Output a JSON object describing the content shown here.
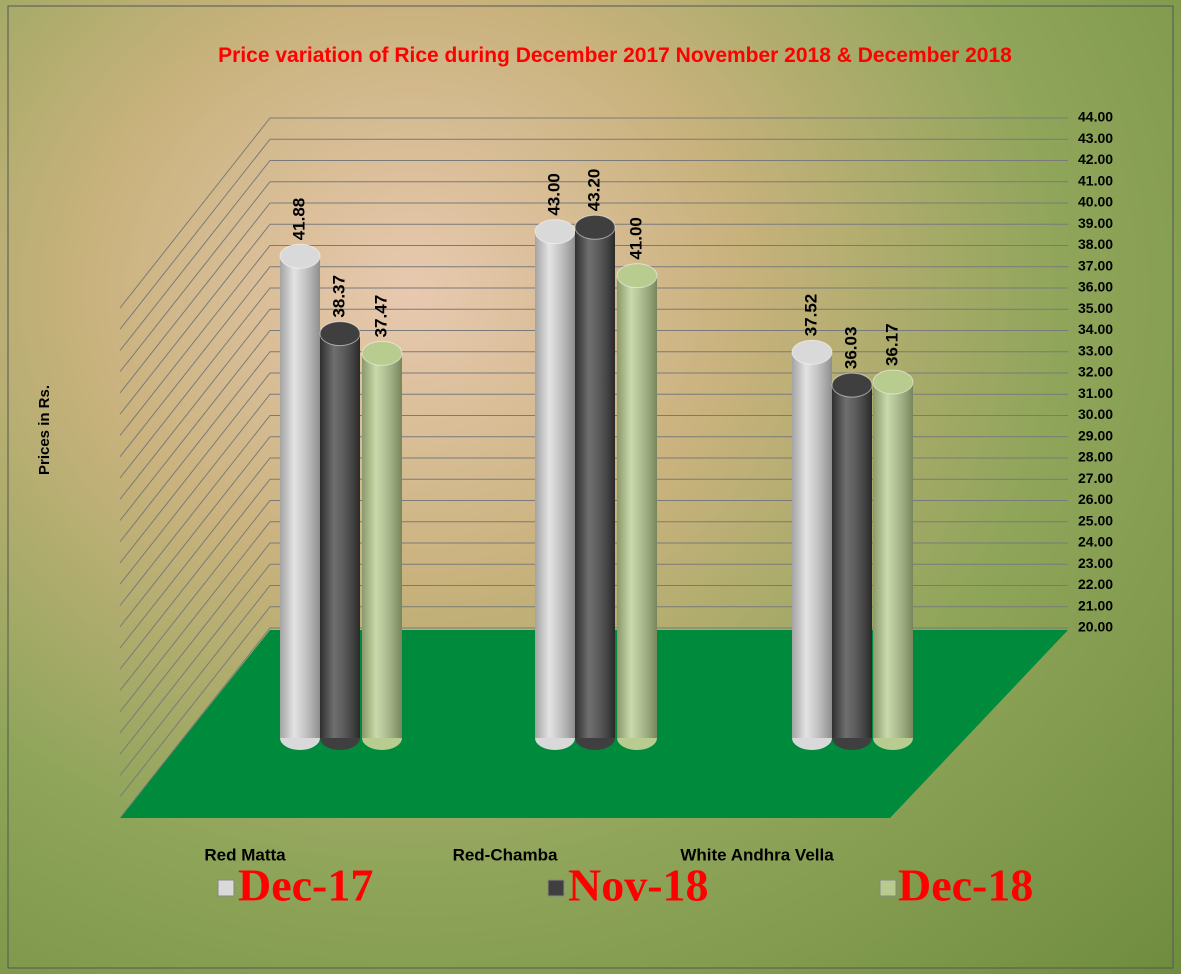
{
  "chart_data": {
    "type": "bar3d",
    "title": "Price variation of Rice during  December  2017  November   2018 & December  2018",
    "ylabel": "Prices in Rs.",
    "categories": [
      "Red Matta",
      "Red-Chamba",
      "White Andhra Vella"
    ],
    "series": [
      {
        "name": "Dec-17",
        "color": "#d9d9d9",
        "values": [
          41.88,
          43.0,
          37.52
        ],
        "value_labels": [
          "41.88",
          "43.00",
          "37.52"
        ]
      },
      {
        "name": "Nov-18",
        "color": "#3f3f3f",
        "values": [
          38.37,
          43.2,
          36.03
        ],
        "value_labels": [
          "38.37",
          "43.20",
          "36.03"
        ]
      },
      {
        "name": "Dec-18",
        "color": "#b7cc8e",
        "values": [
          37.47,
          41.0,
          36.17
        ],
        "value_labels": [
          "37.47",
          "41.00",
          "36.17"
        ]
      }
    ],
    "ylim": [
      20,
      44
    ],
    "yticks": [
      {
        "value": 20,
        "label": "20.00"
      },
      {
        "value": 21,
        "label": "21.00"
      },
      {
        "value": 22,
        "label": "22.00"
      },
      {
        "value": 23,
        "label": "23.00"
      },
      {
        "value": 24,
        "label": "24.00"
      },
      {
        "value": 25,
        "label": "25.00"
      },
      {
        "value": 26,
        "label": "26.00"
      },
      {
        "value": 27,
        "label": "27.00"
      },
      {
        "value": 28,
        "label": "28.00"
      },
      {
        "value": 29,
        "label": "29.00"
      },
      {
        "value": 30,
        "label": "30.00"
      },
      {
        "value": 31,
        "label": "31.00"
      },
      {
        "value": 32,
        "label": "32.00"
      },
      {
        "value": 33,
        "label": "33.00"
      },
      {
        "value": 34,
        "label": "34.00"
      },
      {
        "value": 35,
        "label": "35.00"
      },
      {
        "value": 36,
        "label": "36.00"
      },
      {
        "value": 37,
        "label": "37.00"
      },
      {
        "value": 38,
        "label": "38.00"
      },
      {
        "value": 39,
        "label": "39.00"
      },
      {
        "value": 40,
        "label": "40.00"
      },
      {
        "value": 41,
        "label": "41.00"
      },
      {
        "value": 42,
        "label": "42.00"
      },
      {
        "value": 43,
        "label": "43.00"
      },
      {
        "value": 44,
        "label": "44.00"
      }
    ],
    "grid": true,
    "floor_color": "#008a3c"
  }
}
